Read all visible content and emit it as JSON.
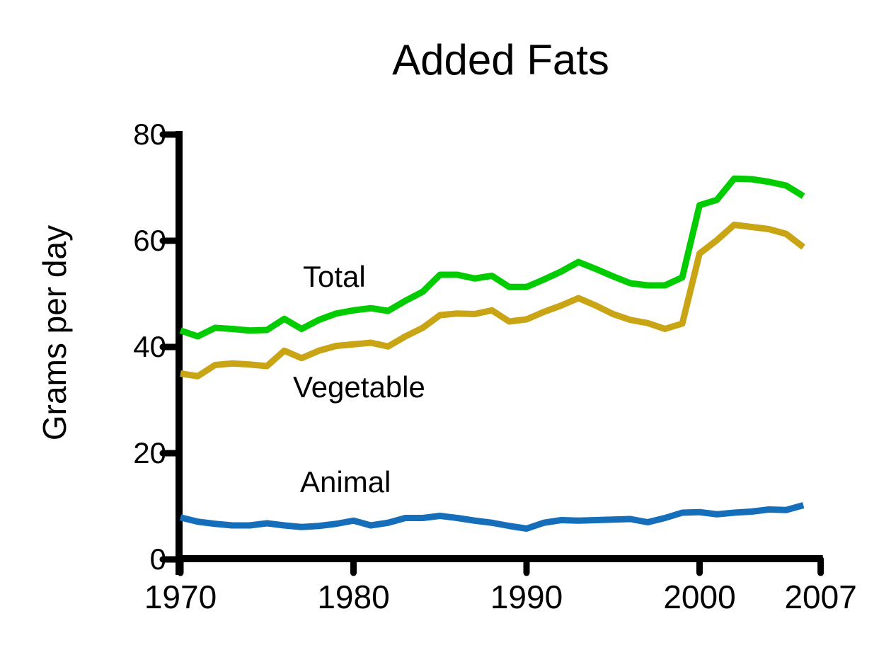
{
  "chart_data": {
    "type": "line",
    "title": "Added Fats",
    "xlabel": "",
    "ylabel": "Grams per day",
    "ylim": [
      0,
      80
    ],
    "xlim": [
      1970,
      2007
    ],
    "yticks": [
      0,
      20,
      40,
      60,
      80
    ],
    "xticks": [
      1970,
      1980,
      1990,
      2000,
      2007
    ],
    "grid": false,
    "legend_position": "inline-labels-on-plot",
    "axis_color": "#000000",
    "background_color": "#FFFFFF",
    "x": [
      1970,
      1971,
      1972,
      1973,
      1974,
      1975,
      1976,
      1977,
      1978,
      1979,
      1980,
      1981,
      1982,
      1983,
      1984,
      1985,
      1986,
      1987,
      1988,
      1989,
      1990,
      1991,
      1992,
      1993,
      1994,
      1995,
      1996,
      1997,
      1998,
      1999,
      2000,
      2001,
      2002,
      2003,
      2004,
      2005,
      2006
    ],
    "series": [
      {
        "name": "Total",
        "color": "#00CC00",
        "values": [
          43.1,
          42.0,
          43.6,
          43.4,
          43.1,
          43.2,
          45.3,
          43.4,
          45.1,
          46.3,
          46.9,
          47.3,
          46.8,
          48.7,
          50.4,
          53.6,
          53.6,
          52.9,
          53.4,
          51.3,
          51.3,
          52.7,
          54.2,
          56.0,
          54.7,
          53.3,
          52.0,
          51.6,
          51.6,
          53.1,
          66.7,
          67.7,
          71.7,
          71.6,
          71.1,
          70.4,
          68.4
        ]
      },
      {
        "name": "Vegetable",
        "color": "#C9A415",
        "values": [
          35.0,
          34.5,
          36.6,
          36.9,
          36.7,
          36.4,
          39.3,
          37.9,
          39.3,
          40.2,
          40.5,
          40.8,
          40.1,
          42.0,
          43.6,
          46.0,
          46.3,
          46.2,
          46.9,
          44.8,
          45.2,
          46.6,
          47.8,
          49.2,
          47.8,
          46.2,
          45.1,
          44.5,
          43.4,
          44.4,
          57.6,
          60.1,
          63.0,
          62.6,
          62.2,
          61.3,
          58.8
        ]
      },
      {
        "name": "Animal",
        "color": "#146EB9",
        "values": [
          7.9,
          7.1,
          6.7,
          6.4,
          6.4,
          6.8,
          6.4,
          6.1,
          6.3,
          6.7,
          7.3,
          6.4,
          6.9,
          7.8,
          7.8,
          8.2,
          7.8,
          7.3,
          6.9,
          6.3,
          5.8,
          6.9,
          7.4,
          7.3,
          7.4,
          7.5,
          7.6,
          7.0,
          7.8,
          8.8,
          8.9,
          8.5,
          8.8,
          9.0,
          9.4,
          9.3,
          10.2
        ]
      }
    ]
  }
}
